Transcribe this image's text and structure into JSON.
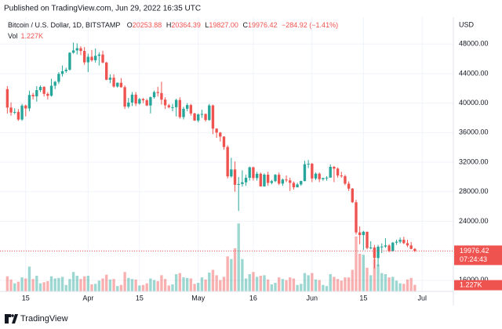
{
  "header": {
    "published": "Published on TradingView.com, Jun 29, 2022 16:35 UTC",
    "brand": "TradingView"
  },
  "chart_data": {
    "type": "candlestick",
    "symbol": "Bitcoin / U.S. Dollar, 1D, BITSTAMP",
    "ohlc_legend": [
      {
        "key": "O",
        "value": "20253.88"
      },
      {
        "key": "H",
        "value": "20364.39"
      },
      {
        "key": "L",
        "value": "19827.00"
      },
      {
        "key": "C",
        "value": "19976.42"
      }
    ],
    "change": "−284.92 (−1.41%)",
    "vol_title": "Vol",
    "volume_label": "1.227K",
    "price_tag": "19976.42",
    "countdown": "07:24:43",
    "y_unit": "USD",
    "up_color": "#26a69a",
    "down_color": "#ef5350",
    "grid": true,
    "xlim": [
      -2,
      121.5
    ],
    "xticks": [
      {
        "value": 5,
        "label": "15"
      },
      {
        "value": 22,
        "label": "Apr"
      },
      {
        "value": 36,
        "label": "15"
      },
      {
        "value": 52,
        "label": "May"
      },
      {
        "value": 67,
        "label": "16"
      },
      {
        "value": 83,
        "label": "Jun"
      },
      {
        "value": 97,
        "label": "15"
      },
      {
        "value": 113,
        "label": "Jul"
      }
    ],
    "ylim": [
      14500,
      51000
    ],
    "yticks": [
      {
        "value": 16000,
        "label": "16000.00"
      },
      {
        "value": 20000,
        "label": "20000.00"
      },
      {
        "value": 24000,
        "label": "24000.00"
      },
      {
        "value": 28000,
        "label": "28000.00"
      },
      {
        "value": 32000,
        "label": "32000.00"
      },
      {
        "value": 36000,
        "label": "36000.00"
      },
      {
        "value": 40000,
        "label": "40000.00"
      },
      {
        "value": 44000,
        "label": "44000.00"
      },
      {
        "value": 48000,
        "label": "48000.00"
      }
    ],
    "volume_ylim": [
      0,
      50
    ],
    "open": [
      41900,
      39400,
      38730,
      38810,
      37780,
      39670,
      39280,
      41110,
      40920,
      41760,
      42200,
      41260,
      41000,
      42360,
      42890,
      43960,
      44330,
      44530,
      46830,
      47140,
      47440,
      47070,
      45530,
      46280,
      45810,
      46410,
      46580,
      45500,
      43170,
      43440,
      42250,
      42760,
      42160,
      39530,
      40080,
      41150,
      39940,
      40550,
      40390,
      39680,
      40800,
      41500,
      41370,
      40480,
      39710,
      39450,
      39450,
      40430,
      38110,
      39240,
      39740,
      38600,
      37640,
      38470,
      38530,
      37720,
      39690,
      36550,
      36010,
      35470,
      34060,
      30080,
      31020,
      28940,
      29050,
      29280,
      29890,
      31310,
      29850,
      30430,
      28720,
      30310,
      29200,
      29430,
      30300,
      29100,
      29650,
      29540,
      29200,
      28600,
      28990,
      29450,
      31730,
      31790,
      29800,
      30450,
      29700,
      29860,
      29910,
      31370,
      31130,
      30200,
      30100,
      29090,
      28420,
      26570,
      22490,
      22130,
      22580,
      20380,
      20450,
      19020,
      20550,
      20570,
      20720,
      19970,
      21100,
      21230,
      21490,
      21040,
      20730,
      20253.88
    ],
    "high": [
      42300,
      40100,
      39300,
      39200,
      39900,
      39800,
      41700,
      41400,
      42300,
      42400,
      42300,
      41500,
      43300,
      43000,
      44200,
      45100,
      44800,
      46900,
      48200,
      48100,
      47700,
      47600,
      46700,
      47200,
      47400,
      46900,
      47100,
      45600,
      43900,
      43900,
      42800,
      43400,
      42400,
      40700,
      41500,
      41500,
      40700,
      40700,
      40600,
      40900,
      41700,
      42200,
      42900,
      40800,
      39900,
      39900,
      40600,
      40800,
      39500,
      40000,
      39900,
      38700,
      38600,
      39100,
      38600,
      39900,
      39800,
      36600,
      36100,
      35500,
      34300,
      32600,
      32100,
      30000,
      30900,
      30300,
      31400,
      31400,
      30700,
      30600,
      30500,
      30700,
      29600,
      30400,
      30600,
      29800,
      30200,
      29900,
      29400,
      29200,
      29500,
      32200,
      32300,
      31900,
      30600,
      30600,
      29900,
      30100,
      31700,
      31500,
      31300,
      30700,
      30300,
      29400,
      28500,
      26900,
      23300,
      22700,
      22600,
      21300,
      20800,
      20800,
      21000,
      21700,
      20900,
      21200,
      21500,
      21800,
      21900,
      21500,
      21200,
      20364.39
    ],
    "low": [
      38600,
      38300,
      38500,
      37600,
      37600,
      38200,
      38900,
      40500,
      40200,
      41500,
      40900,
      40500,
      40900,
      41900,
      42600,
      43600,
      44100,
      44400,
      46700,
      46600,
      46500,
      45200,
      44200,
      45600,
      45500,
      45100,
      45400,
      43100,
      42700,
      42100,
      42100,
      42100,
      39200,
      39300,
      39600,
      39600,
      39800,
      40000,
      39600,
      38600,
      40600,
      40900,
      39800,
      39200,
      39300,
      38900,
      38200,
      37900,
      37800,
      38900,
      38300,
      37600,
      37400,
      38000,
      37500,
      37600,
      35800,
      35300,
      34800,
      33700,
      29800,
      29900,
      28000,
      25400,
      28700,
      28800,
      29500,
      29500,
      29500,
      28700,
      28700,
      28800,
      29000,
      29300,
      28900,
      28800,
      29300,
      28100,
      28300,
      28600,
      28800,
      29400,
      31200,
      29300,
      29600,
      29300,
      29500,
      29500,
      29900,
      29300,
      29900,
      29900,
      28900,
      28100,
      26500,
      22200,
      20900,
      20100,
      20200,
      20200,
      17600,
      17900,
      19700,
      20400,
      19800,
      19900,
      20800,
      21000,
      20900,
      20500,
      20200,
      19827
    ],
    "close": [
      39400,
      38730,
      38810,
      37780,
      39670,
      39280,
      41110,
      40920,
      41760,
      42200,
      41260,
      41000,
      42360,
      42890,
      43960,
      44330,
      44530,
      46830,
      47140,
      47440,
      47070,
      45530,
      46280,
      45810,
      46410,
      46580,
      45500,
      43170,
      43440,
      42250,
      42760,
      42160,
      39530,
      40080,
      41150,
      39940,
      40550,
      40390,
      39680,
      40800,
      41500,
      41370,
      40480,
      39710,
      39450,
      39450,
      40430,
      38110,
      39240,
      39740,
      38600,
      37640,
      38470,
      38530,
      37720,
      39690,
      36550,
      36010,
      35470,
      34060,
      30080,
      31020,
      28940,
      29050,
      29280,
      29890,
      31310,
      29850,
      30430,
      28720,
      30310,
      29200,
      29430,
      30300,
      29100,
      29650,
      29540,
      29200,
      28600,
      28990,
      29450,
      31730,
      31790,
      29800,
      30450,
      29700,
      29860,
      29910,
      31370,
      31130,
      30200,
      30100,
      29090,
      28420,
      26570,
      22490,
      22130,
      22580,
      20380,
      20450,
      19020,
      20550,
      20570,
      20720,
      19970,
      21100,
      21230,
      21490,
      21040,
      20730,
      20260,
      19976.42
    ],
    "volume": [
      2.8,
      2.2,
      1.5,
      1.8,
      2.6,
      2.4,
      4.6,
      2.3,
      2.9,
      1.5,
      1.7,
      1.9,
      2.8,
      2.4,
      2.5,
      2.7,
      1.2,
      2.3,
      3.6,
      2.9,
      2.3,
      2.8,
      2.9,
      1.3,
      1.4,
      2.0,
      2.4,
      3.1,
      2.2,
      2.3,
      1.0,
      1.2,
      3.6,
      2.5,
      2.3,
      2.2,
      1.1,
      1.2,
      1.5,
      2.4,
      2.1,
      1.9,
      3.0,
      2.3,
      1.1,
      1.3,
      3.2,
      3.4,
      2.6,
      2.5,
      2.4,
      1.4,
      1.6,
      2.6,
      2.2,
      3.5,
      4.0,
      3.0,
      2.1,
      2.7,
      6.5,
      6.0,
      8.0,
      12.6,
      6.0,
      2.4,
      3.2,
      3.6,
      2.7,
      2.9,
      3.0,
      2.2,
      1.3,
      1.6,
      2.6,
      2.3,
      2.1,
      2.6,
      2.4,
      1.2,
      1.4,
      3.4,
      3.0,
      3.4,
      2.2,
      2.1,
      1.2,
      1.0,
      3.2,
      2.7,
      2.3,
      2.0,
      2.6,
      2.6,
      4.0,
      10.2,
      7.0,
      6.8,
      4.4,
      3.0,
      6.0,
      5.0,
      3.4,
      3.2,
      2.6,
      2.7,
      2.0,
      1.5,
      1.4,
      2.2,
      2.5,
      1.227
    ]
  }
}
